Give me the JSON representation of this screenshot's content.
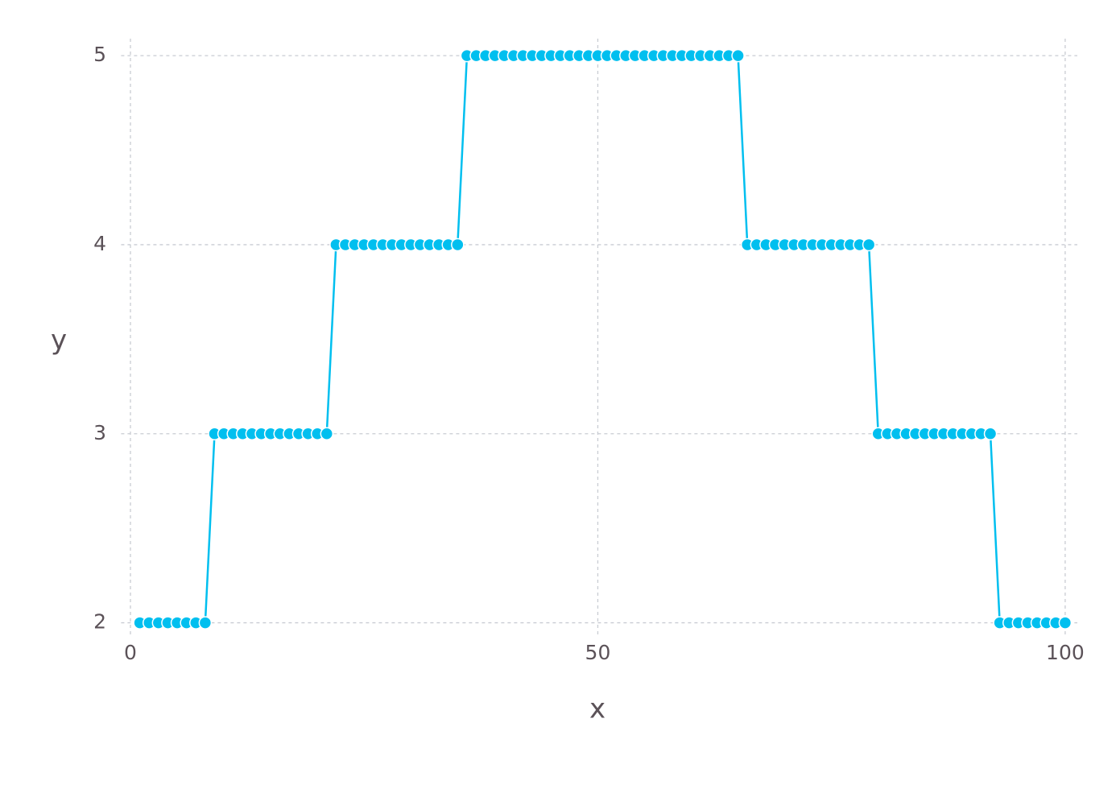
{
  "chart_data": {
    "type": "line",
    "xlabel": "x",
    "ylabel": "y",
    "x": [
      1,
      2,
      3,
      4,
      5,
      6,
      7,
      8,
      9,
      10,
      11,
      12,
      13,
      14,
      15,
      16,
      17,
      18,
      19,
      20,
      21,
      22,
      23,
      24,
      25,
      26,
      27,
      28,
      29,
      30,
      31,
      32,
      33,
      34,
      35,
      36,
      37,
      38,
      39,
      40,
      41,
      42,
      43,
      44,
      45,
      46,
      47,
      48,
      49,
      50,
      51,
      52,
      53,
      54,
      55,
      56,
      57,
      58,
      59,
      60,
      61,
      62,
      63,
      64,
      65,
      66,
      67,
      68,
      69,
      70,
      71,
      72,
      73,
      74,
      75,
      76,
      77,
      78,
      79,
      80,
      81,
      82,
      83,
      84,
      85,
      86,
      87,
      88,
      89,
      90,
      91,
      92,
      93,
      94,
      95,
      96,
      97,
      98,
      99,
      100
    ],
    "values": [
      2,
      2,
      2,
      2,
      2,
      2,
      2,
      2,
      3,
      3,
      3,
      3,
      3,
      3,
      3,
      3,
      3,
      3,
      3,
      3,
      3,
      4,
      4,
      4,
      4,
      4,
      4,
      4,
      4,
      4,
      4,
      4,
      4,
      4,
      4,
      5,
      5,
      5,
      5,
      5,
      5,
      5,
      5,
      5,
      5,
      5,
      5,
      5,
      5,
      5,
      5,
      5,
      5,
      5,
      5,
      5,
      5,
      5,
      5,
      5,
      5,
      5,
      5,
      5,
      5,
      4,
      4,
      4,
      4,
      4,
      4,
      4,
      4,
      4,
      4,
      4,
      4,
      4,
      4,
      3,
      3,
      3,
      3,
      3,
      3,
      3,
      3,
      3,
      3,
      3,
      3,
      3,
      2,
      2,
      2,
      2,
      2,
      2,
      2,
      2
    ],
    "color": "#00bfef",
    "markers": true,
    "grid": true,
    "xlim": [
      -1,
      101.3
    ],
    "ylim": [
      1.93,
      5.09
    ],
    "xticks": [
      0,
      50,
      100
    ],
    "yticks": [
      2,
      3,
      4,
      5
    ]
  }
}
